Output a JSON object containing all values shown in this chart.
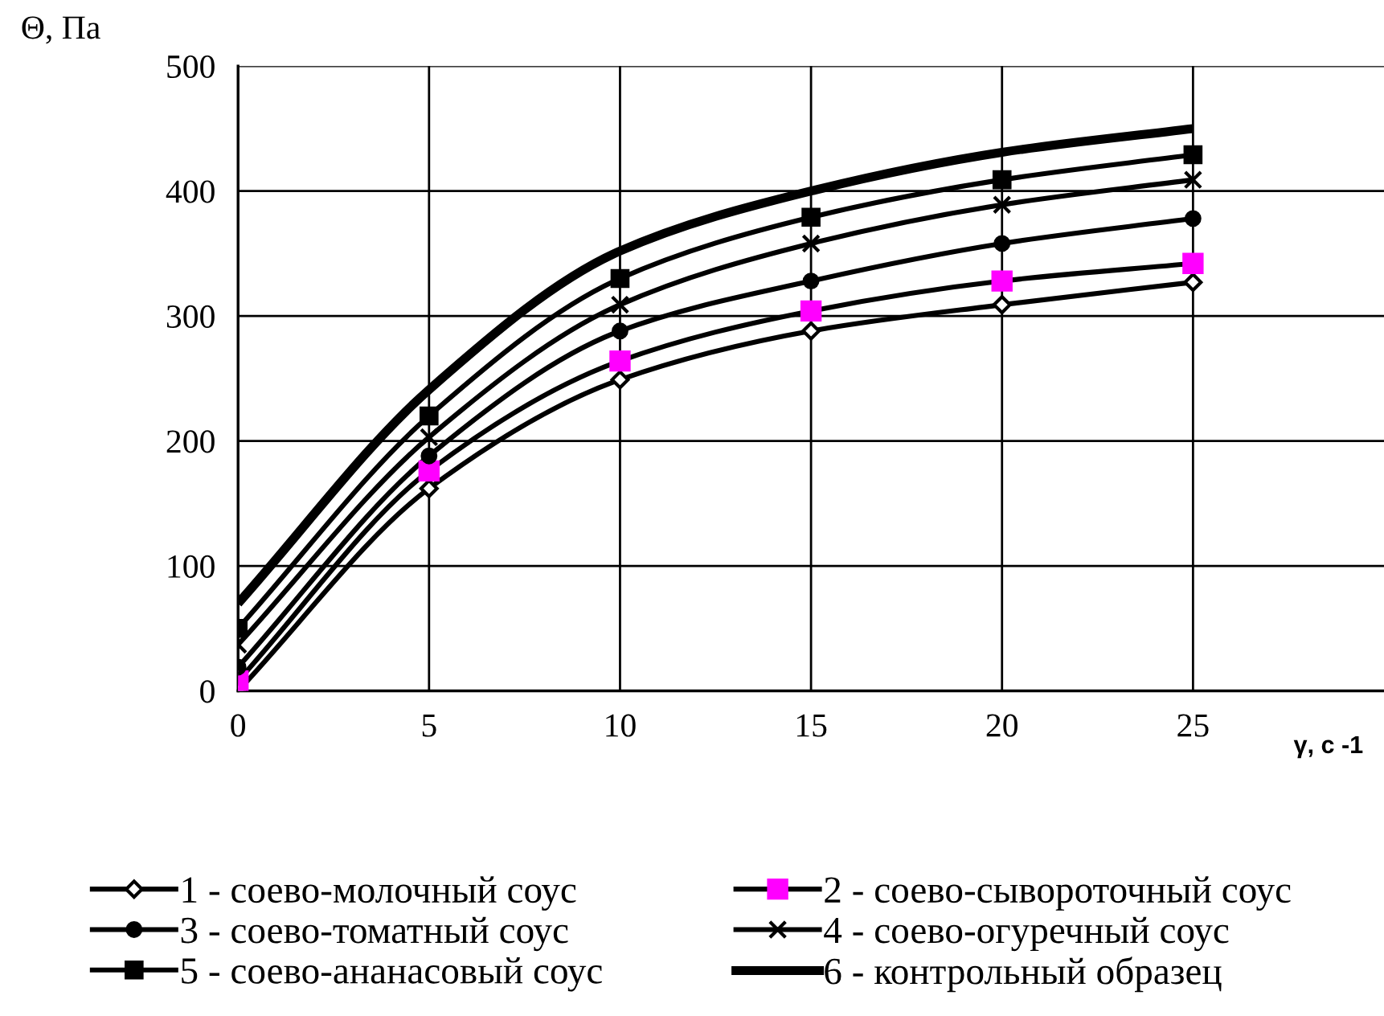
{
  "chart_data": {
    "type": "line",
    "ylabel": "Θ, Па",
    "xlabel": "γ, c -1",
    "x": [
      0,
      5,
      10,
      15,
      20,
      25
    ],
    "xlim": [
      0,
      30
    ],
    "xticks": [
      0,
      5,
      10,
      15,
      20,
      25
    ],
    "ylim": [
      0,
      500
    ],
    "yticks": [
      0,
      100,
      200,
      300,
      400,
      500
    ],
    "grid": true,
    "legend": "bottom",
    "series": [
      {
        "name": "1 - соево-молочный соус",
        "color": "#000000",
        "marker": "diamond",
        "values": [
          0,
          162,
          249,
          288,
          309,
          327
        ]
      },
      {
        "name": "2 - соево-сывороточный соус",
        "color": "#ff00ff",
        "marker": "square",
        "values": [
          8,
          176,
          264,
          304,
          328,
          342
        ]
      },
      {
        "name": "3 - соево-томатный соус",
        "color": "#000000",
        "marker": "circle",
        "values": [
          19,
          188,
          288,
          328,
          358,
          378
        ]
      },
      {
        "name": "4 - соево-огуречный соус",
        "color": "#000000",
        "marker": "cross",
        "values": [
          37,
          203,
          309,
          358,
          389,
          409
        ]
      },
      {
        "name": "5 - соево-ананасовый соус",
        "color": "#000000",
        "marker": "square",
        "values": [
          50,
          220,
          330,
          379,
          409,
          429
        ]
      },
      {
        "name": "6 - контрольный образец",
        "color": "#000000",
        "marker": "none",
        "values": [
          70,
          241,
          352,
          400,
          431,
          450
        ]
      }
    ]
  }
}
